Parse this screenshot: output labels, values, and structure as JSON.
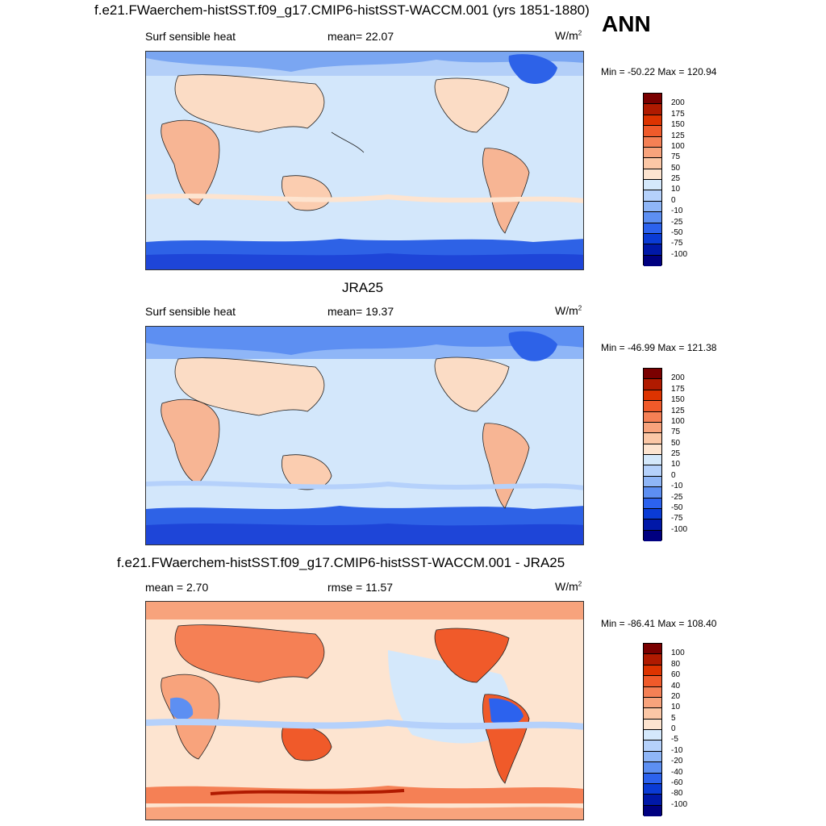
{
  "season": "ANN",
  "panels": [
    {
      "title": "f.e21.FWaerchem-histSST.f09_g17.CMIP6-histSST-WACCM.001 (yrs 1851-1880)",
      "left": "Surf sensible heat",
      "center": "mean=  22.07",
      "unit": "W/m",
      "unit_sup": "2",
      "minmax": "Min = -50.22 Max = 120.94",
      "colorbar": {
        "labels": [
          "200",
          "175",
          "150",
          "125",
          "100",
          "75",
          "50",
          "25",
          "10",
          "0",
          "-10",
          "-25",
          "-50",
          "-75",
          "-100"
        ],
        "colors": [
          "#7a0000",
          "#b01a00",
          "#dd3300",
          "#f05a2a",
          "#f58055",
          "#f8a37c",
          "#fbc7a6",
          "#fde4d0",
          "#d4e8fb",
          "#b5d1fb",
          "#8fb6f7",
          "#5d8ff2",
          "#2c62ee",
          "#0a3bd5",
          "#0018a8",
          "#000080"
        ]
      }
    },
    {
      "title": "JRA25",
      "left": "Surf sensible heat",
      "center": "mean=  19.37",
      "unit": "W/m",
      "unit_sup": "2",
      "minmax": "Min = -46.99 Max = 121.38",
      "colorbar": {
        "labels": [
          "200",
          "175",
          "150",
          "125",
          "100",
          "75",
          "50",
          "25",
          "10",
          "0",
          "-10",
          "-25",
          "-50",
          "-75",
          "-100"
        ],
        "colors": [
          "#7a0000",
          "#b01a00",
          "#dd3300",
          "#f05a2a",
          "#f58055",
          "#f8a37c",
          "#fbc7a6",
          "#fde4d0",
          "#d4e8fb",
          "#b5d1fb",
          "#8fb6f7",
          "#5d8ff2",
          "#2c62ee",
          "#0a3bd5",
          "#0018a8",
          "#000080"
        ]
      }
    },
    {
      "title": "f.e21.FWaerchem-histSST.f09_g17.CMIP6-histSST-WACCM.001 - JRA25",
      "left": "mean =   2.70",
      "center": "rmse =  11.57",
      "unit": "W/m",
      "unit_sup": "2",
      "minmax": "Min = -86.41 Max = 108.40",
      "colorbar": {
        "labels": [
          "100",
          "80",
          "60",
          "40",
          "20",
          "10",
          "5",
          "0",
          "-5",
          "-10",
          "-20",
          "-40",
          "-60",
          "-80",
          "-100"
        ],
        "colors": [
          "#7a0000",
          "#b01a00",
          "#dd3300",
          "#f05a2a",
          "#f58055",
          "#f8a37c",
          "#fbc7a6",
          "#fde4d0",
          "#d4e8fb",
          "#b5d1fb",
          "#8fb6f7",
          "#5d8ff2",
          "#2c62ee",
          "#0a3bd5",
          "#0018a8",
          "#000080"
        ]
      }
    }
  ]
}
